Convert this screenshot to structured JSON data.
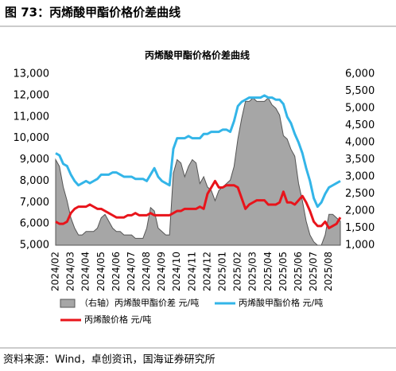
{
  "header": {
    "title": "图 73：丙烯酸甲酯价格价差曲线"
  },
  "chart_data": {
    "type": "combo",
    "title": "丙烯酸甲酯价格价差曲线",
    "categories": [
      "2024/02",
      null,
      null,
      null,
      "2024/03",
      null,
      null,
      null,
      "2024/04",
      null,
      null,
      null,
      "2024/05",
      null,
      null,
      null,
      "2024/06",
      null,
      null,
      null,
      "2024/07",
      null,
      null,
      null,
      "2024/08",
      null,
      null,
      null,
      "2024/09",
      null,
      null,
      null,
      "2024/10",
      null,
      null,
      null,
      "2024/11",
      null,
      null,
      null,
      "2024/12",
      null,
      null,
      null,
      "2025/01",
      null,
      null,
      null,
      "2025/02",
      null,
      null,
      null,
      "2025/03",
      null,
      null,
      null,
      "2025/04",
      null,
      null,
      null,
      "2025/05",
      null,
      null,
      null,
      "2025/06",
      null,
      null,
      null,
      "2025/07",
      null,
      null,
      null,
      "2025/08",
      null,
      null,
      null
    ],
    "series": [
      {
        "name": "（右轴）丙烯酸甲酯价差 元/吨",
        "kind": "area",
        "axis": "y2",
        "color": "#a6a6a6",
        "values": [
          3500,
          3300,
          2700,
          2300,
          1800,
          1500,
          1300,
          1300,
          1400,
          1400,
          1400,
          1500,
          1800,
          1900,
          1700,
          1500,
          1400,
          1400,
          1300,
          1300,
          1300,
          1200,
          1200,
          1200,
          1500,
          2100,
          2000,
          1500,
          1400,
          1300,
          1300,
          3100,
          3500,
          3400,
          3000,
          3300,
          3500,
          3400,
          2800,
          3000,
          2700,
          2600,
          2300,
          2600,
          2700,
          2800,
          2900,
          3300,
          4100,
          4700,
          5200,
          5200,
          5300,
          5200,
          5200,
          5200,
          5300,
          5100,
          5000,
          4800,
          4200,
          4100,
          3800,
          3600,
          2800,
          2300,
          1700,
          1300,
          1100,
          1000,
          1000,
          1300,
          1900,
          1900,
          1800,
          1700
        ]
      },
      {
        "name": "丙烯酸甲酯价格 元/吨",
        "kind": "line",
        "color": "#33b5e8",
        "values": [
          9300,
          9200,
          8800,
          8700,
          8300,
          8000,
          7800,
          7900,
          8000,
          7900,
          8000,
          8100,
          8300,
          8300,
          8300,
          8400,
          8400,
          8300,
          8200,
          8200,
          8200,
          8100,
          8100,
          8100,
          8000,
          8300,
          8600,
          8200,
          8000,
          7900,
          7800,
          9500,
          10000,
          10000,
          10000,
          10100,
          10000,
          10000,
          10000,
          10200,
          10200,
          10300,
          10300,
          10300,
          10400,
          10400,
          10300,
          10800,
          11500,
          11700,
          11800,
          11900,
          11900,
          11900,
          11900,
          12000,
          11900,
          11900,
          11800,
          11800,
          11600,
          11000,
          10700,
          10200,
          9800,
          9300,
          8600,
          8000,
          7200,
          6800,
          7000,
          7400,
          7700,
          7800,
          7900,
          8000
        ]
      },
      {
        "name": "丙烯酸价格 元/吨",
        "kind": "line",
        "color": "#e8141b",
        "values": [
          6100,
          6000,
          6000,
          6100,
          6500,
          6700,
          6800,
          6800,
          6800,
          6900,
          6800,
          6700,
          6700,
          6600,
          6500,
          6400,
          6300,
          6300,
          6300,
          6400,
          6400,
          6500,
          6400,
          6400,
          6400,
          6500,
          6400,
          6400,
          6400,
          6400,
          6400,
          6500,
          6600,
          6600,
          6700,
          6700,
          6700,
          6700,
          6800,
          6700,
          7400,
          7700,
          8000,
          7700,
          7700,
          7800,
          7800,
          7800,
          7700,
          7200,
          6700,
          6900,
          7000,
          7100,
          7100,
          7100,
          6900,
          6900,
          6900,
          7000,
          7500,
          7000,
          7000,
          6900,
          7100,
          7300,
          7000,
          6600,
          6100,
          5900,
          5900,
          6100,
          5800,
          5900,
          6000,
          6300
        ]
      }
    ],
    "ylim": [
      5000,
      13000
    ],
    "yticks": [
      {
        "value": 5000,
        "label": "5,000"
      },
      {
        "value": 6000,
        "label": "6,000"
      },
      {
        "value": 7000,
        "label": "7,000"
      },
      {
        "value": 8000,
        "label": "8,000"
      },
      {
        "value": 9000,
        "label": "9,000"
      },
      {
        "value": 10000,
        "label": "10,000"
      },
      {
        "value": 11000,
        "label": "11,000"
      },
      {
        "value": 12000,
        "label": "12,000"
      },
      {
        "value": 13000,
        "label": "13,000"
      }
    ],
    "y2lim": [
      1000,
      6000
    ],
    "y2ticks": [
      {
        "value": 1000,
        "label": "1,000"
      },
      {
        "value": 1500,
        "label": "1,500"
      },
      {
        "value": 2000,
        "label": "2,000"
      },
      {
        "value": 2500,
        "label": "2,500"
      },
      {
        "value": 3000,
        "label": "3,000"
      },
      {
        "value": 3500,
        "label": "3,500"
      },
      {
        "value": 4000,
        "label": "4,000"
      },
      {
        "value": 4500,
        "label": "4,500"
      },
      {
        "value": 5000,
        "label": "5,000"
      },
      {
        "value": 5500,
        "label": "5,500"
      },
      {
        "value": 6000,
        "label": "6,000"
      }
    ],
    "grid": false
  },
  "footer": {
    "source": "资料来源：Wind，卓创资讯，国海证券研究所"
  }
}
